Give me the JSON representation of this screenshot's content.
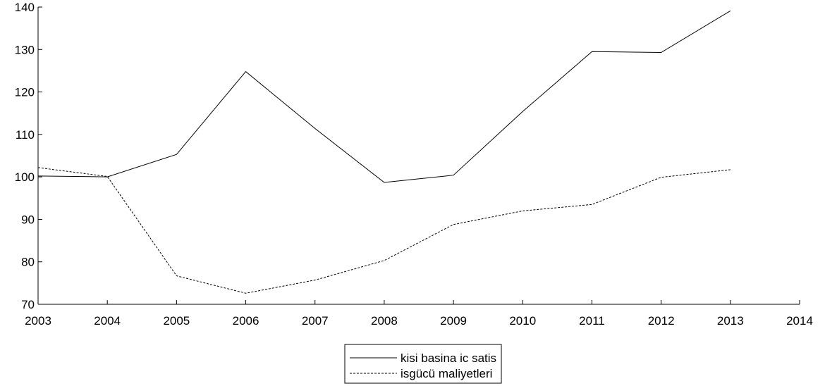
{
  "chart_data": {
    "type": "line",
    "title": "",
    "xlabel": "",
    "ylabel": "",
    "x": [
      2003,
      2004,
      2005,
      2006,
      2007,
      2008,
      2009,
      2010,
      2011,
      2012,
      2013
    ],
    "x_ticks": [
      "2003",
      "2004",
      "2005",
      "2006",
      "2007",
      "2008",
      "2009",
      "2010",
      "2011",
      "2012",
      "2013",
      "2014"
    ],
    "xlim": [
      2003,
      2014
    ],
    "y_ticks": [
      "70",
      "80",
      "90",
      "100",
      "110",
      "120",
      "130",
      "140"
    ],
    "ylim": [
      70,
      140
    ],
    "grid": false,
    "legend_position": "bottom-center",
    "series": [
      {
        "name": "kisi basina ic satis",
        "style": "solid",
        "color": "#000000",
        "values": [
          100.2,
          100.0,
          105.3,
          124.8,
          111.4,
          98.7,
          100.4,
          115.4,
          129.5,
          129.3,
          139.1
        ]
      },
      {
        "name": "isgücü maliyetleri",
        "style": "dashed",
        "color": "#000000",
        "values": [
          102.2,
          100.1,
          76.7,
          72.6,
          75.7,
          80.3,
          88.8,
          92.0,
          93.5,
          99.9,
          101.7
        ]
      }
    ]
  }
}
